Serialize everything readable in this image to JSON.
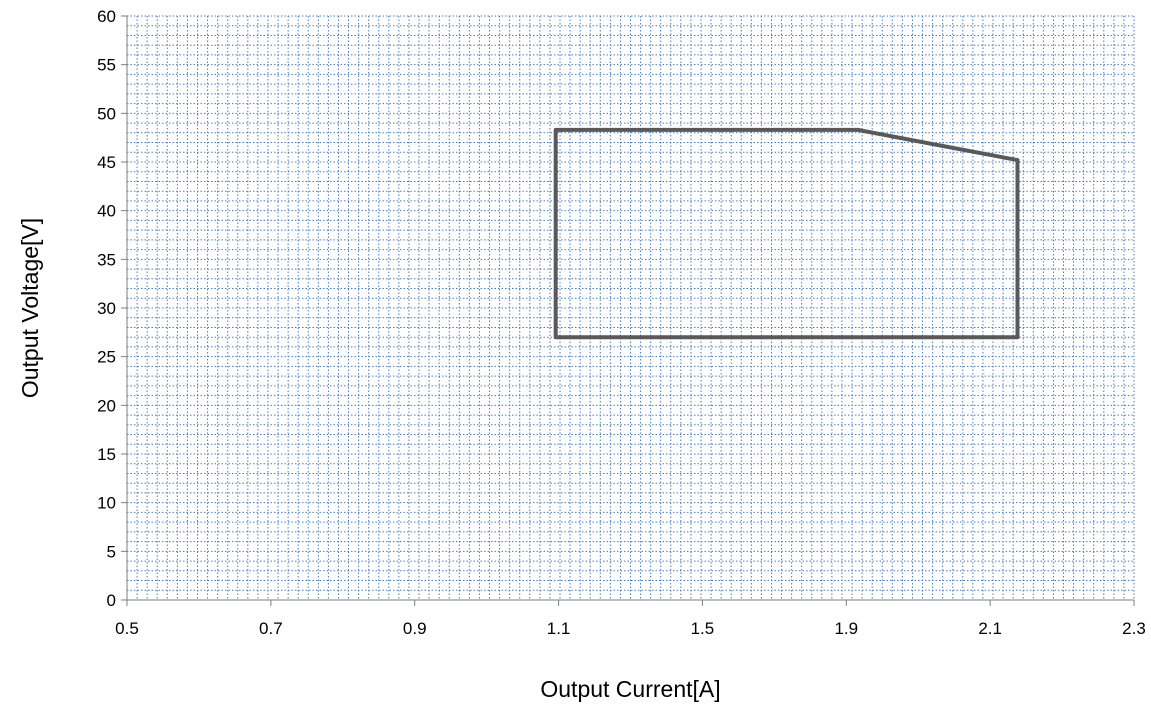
{
  "chart_data": {
    "type": "line",
    "title": "",
    "xlabel": "Output Current[A]",
    "ylabel": "Output Voltage[V]",
    "x_tick_labels": [
      "0.5",
      "0.7",
      "0.9",
      "1.1",
      "1.5",
      "1.9",
      "2.1",
      "2.3"
    ],
    "y_ticks": [
      0,
      5,
      10,
      15,
      20,
      25,
      30,
      35,
      40,
      45,
      50,
      55,
      60
    ],
    "ylim": [
      0,
      60
    ],
    "grid": true,
    "legend": "none",
    "series": [
      {
        "points": [
          {
            "x_tick_index": 2.98,
            "y": 27
          },
          {
            "x_tick_index": 2.98,
            "y": 48.3
          },
          {
            "x_tick_index": 5.08,
            "y": 48.3
          },
          {
            "x_tick_index": 6.19,
            "y": 45.2
          },
          {
            "x_tick_index": 6.19,
            "y": 27
          },
          {
            "x_tick_index": 2.98,
            "y": 27
          }
        ],
        "color": "#595959"
      }
    ]
  },
  "colors": {
    "grid": "#4a7ebb",
    "axis": "#7f7f7f",
    "series": "#595959"
  }
}
